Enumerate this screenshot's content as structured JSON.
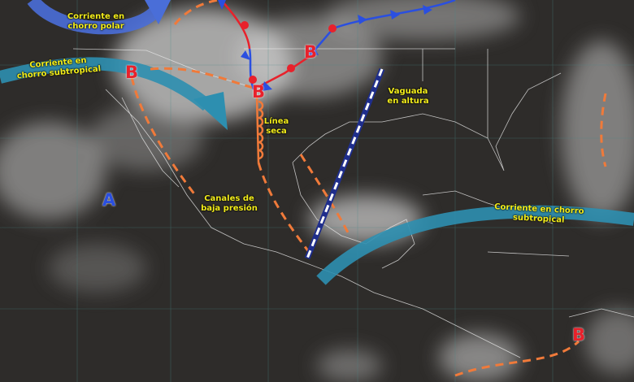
{
  "labels": {
    "polar_jet": [
      "Corriente en",
      "chorro polar"
    ],
    "subtropical_jet_west": [
      "Corriente en",
      "chorro subtropical"
    ],
    "dry_line": [
      "Línea",
      "seca"
    ],
    "upper_trough": [
      "Vaguada",
      "en altura"
    ],
    "low_pressure_channels": [
      "Canales de",
      "baja presión"
    ],
    "subtropical_jet_east": [
      "Corriente en chorro",
      "subtropical"
    ]
  },
  "pressure_systems": {
    "low_symbol": "B",
    "high_symbol": "A"
  },
  "colors": {
    "low": "#e8212b",
    "high": "#2a4fe0",
    "jet": "#2d8fb0",
    "polar_jet": "#4a6ed8",
    "trough_line": "#f07a3a",
    "label_text": "#f2ec1a"
  }
}
